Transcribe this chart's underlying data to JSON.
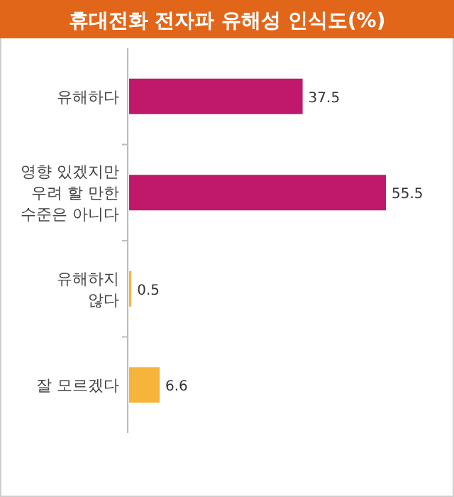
{
  "chart_data": {
    "type": "bar",
    "orientation": "horizontal",
    "title": "휴대전화 전자파 유해성 인식도(%)",
    "categories": [
      "유해하다",
      "영향 있겠지만\n우려 할 만한\n수준은 아니다",
      "유해하지\n않다",
      "잘 모르겠다"
    ],
    "values": [
      37.5,
      55.5,
      0.5,
      6.6
    ],
    "colors": [
      "#c0186a",
      "#c0186a",
      "#f7b43a",
      "#f7b43a"
    ],
    "data_labels": true
  }
}
